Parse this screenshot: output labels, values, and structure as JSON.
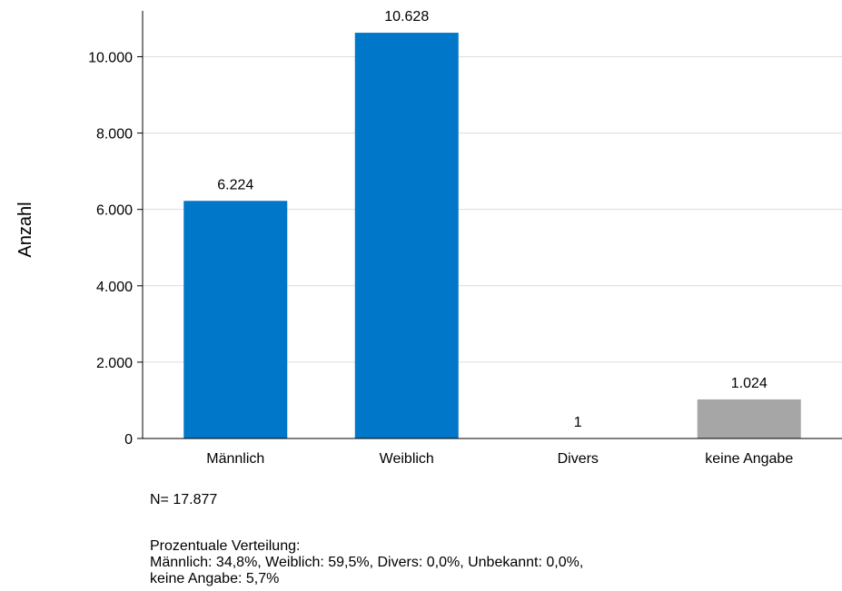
{
  "chart_data": {
    "type": "bar",
    "title": "",
    "xlabel": "",
    "ylabel": "Anzahl",
    "categories": [
      "Männlich",
      "Weiblich",
      "Divers",
      "keine Angabe"
    ],
    "values": [
      6224,
      10628,
      1,
      1024
    ],
    "value_labels": [
      "6.224",
      "10.628",
      "1",
      "1.024"
    ],
    "bar_colors": [
      "#0077c8",
      "#0077c8",
      "#0077c8",
      "#a6a6a6"
    ],
    "ylim": [
      0,
      11200
    ],
    "yticks": [
      0,
      2000,
      4000,
      6000,
      8000,
      10000
    ],
    "ytick_labels": [
      "0",
      "2.000",
      "4.000",
      "6.000",
      "8.000",
      "10.000"
    ],
    "grid": true,
    "legend": "none"
  },
  "notes": {
    "n": "N= 17.877",
    "pct_title": "Prozentuale Verteilung:",
    "pct_line1": "Männlich: 34,8%, Weiblich: 59,5%, Divers: 0,0%, Unbekannt: 0,0%,",
    "pct_line2": "keine Angabe: 5,7%"
  }
}
